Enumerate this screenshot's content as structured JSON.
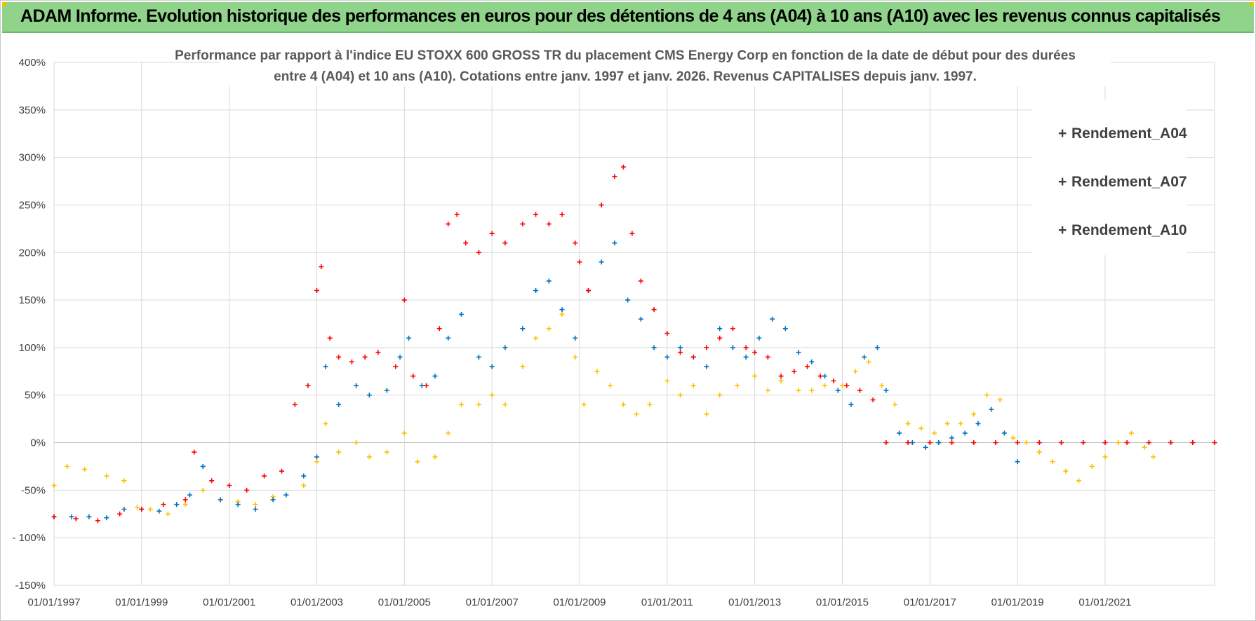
{
  "header": {
    "title": "ADAM Informe. Evolution historique des performances en euros pour des détentions de 4 ans (A04) à 10 ans (A10) avec les revenus connus capitalisés"
  },
  "colors": {
    "A04": "#ffc000",
    "A07": "#0070c0",
    "A10": "#ff0000",
    "banner": "#8fd48a",
    "grid": "#d9d9d9"
  },
  "chart_data": {
    "type": "scatter",
    "title_lines": [
      "Performance par rapport à l'indice EU STOXX 600 GROSS TR  du placement CMS Energy Corp en fonction de la date de début pour des durées",
      "entre 4 (A04) et 10 ans (A10).  Cotations entre janv. 1997 et janv. 2026. Revenus CAPITALISES depuis janv. 1997."
    ],
    "ylim": [
      -150,
      400
    ],
    "ytick_values": [
      -150,
      -100,
      -50,
      0,
      50,
      100,
      150,
      200,
      250,
      300,
      350,
      400
    ],
    "ytick_labels": [
      "-150%",
      "- 100%",
      "-50%",
      "0%",
      "50%",
      "100%",
      "150%",
      "200%",
      "250%",
      "300%",
      "350%",
      "400%"
    ],
    "xlim": [
      1997.0,
      2023.5
    ],
    "xtick_values": [
      1997,
      1999,
      2001,
      2003,
      2005,
      2007,
      2009,
      2011,
      2013,
      2015,
      2017,
      2019,
      2021
    ],
    "xtick_labels": [
      "01/01/1997",
      "01/01/1999",
      "01/01/2001",
      "01/01/2003",
      "01/01/2005",
      "01/01/2007",
      "01/01/2009",
      "01/01/2011",
      "01/01/2013",
      "01/01/2015",
      "01/01/2017",
      "01/01/2019",
      "01/01/2021"
    ],
    "legend": {
      "position": "top-right",
      "marker": "+"
    },
    "series": [
      {
        "name": "Rendement_A04",
        "x": [
          1997.0,
          1997.3,
          1997.7,
          1998.2,
          1998.6,
          1998.9,
          1999.2,
          1999.6,
          2000.0,
          2000.4,
          2000.8,
          2001.2,
          2001.6,
          2002.0,
          2002.3,
          2002.7,
          2003.0,
          2003.2,
          2003.5,
          2003.9,
          2004.2,
          2004.6,
          2005.0,
          2005.3,
          2005.7,
          2006.0,
          2006.3,
          2006.7,
          2007.0,
          2007.3,
          2007.7,
          2008.0,
          2008.3,
          2008.6,
          2008.9,
          2009.1,
          2009.4,
          2009.7,
          2010.0,
          2010.3,
          2010.6,
          2011.0,
          2011.3,
          2011.6,
          2011.9,
          2012.2,
          2012.6,
          2013.0,
          2013.3,
          2013.6,
          2014.0,
          2014.3,
          2014.6,
          2015.0,
          2015.3,
          2015.6,
          2015.9,
          2016.2,
          2016.5,
          2016.8,
          2017.1,
          2017.4,
          2017.7,
          2018.0,
          2018.3,
          2018.6,
          2018.9,
          2019.2,
          2019.5,
          2019.8,
          2020.1,
          2020.4,
          2020.7,
          2021.0,
          2021.3,
          2021.6,
          2021.9,
          2022.1
        ],
        "y": [
          -45,
          -25,
          -28,
          -35,
          -40,
          -68,
          -70,
          -75,
          -65,
          -50,
          -60,
          -62,
          -65,
          -57,
          -55,
          -45,
          -20,
          20,
          -10,
          0,
          -15,
          -10,
          10,
          -20,
          -15,
          10,
          40,
          40,
          50,
          40,
          80,
          110,
          120,
          135,
          90,
          40,
          75,
          60,
          40,
          30,
          40,
          65,
          50,
          60,
          30,
          50,
          60,
          70,
          55,
          65,
          55,
          55,
          60,
          60,
          75,
          85,
          60,
          40,
          20,
          15,
          10,
          20,
          20,
          30,
          50,
          45,
          5,
          0,
          -10,
          -20,
          -30,
          -40,
          -25,
          -15,
          0,
          10,
          -5,
          -15
        ]
      },
      {
        "name": "Rendement_A07",
        "x": [
          1997.0,
          1997.4,
          1997.8,
          1998.2,
          1998.6,
          1999.0,
          1999.4,
          1999.8,
          2000.1,
          2000.4,
          2000.8,
          2001.2,
          2001.6,
          2002.0,
          2002.3,
          2002.7,
          2003.0,
          2003.2,
          2003.5,
          2003.9,
          2004.2,
          2004.6,
          2004.9,
          2005.1,
          2005.4,
          2005.7,
          2006.0,
          2006.3,
          2006.7,
          2007.0,
          2007.3,
          2007.7,
          2008.0,
          2008.3,
          2008.6,
          2008.9,
          2009.2,
          2009.5,
          2009.8,
          2010.1,
          2010.4,
          2010.7,
          2011.0,
          2011.3,
          2011.6,
          2011.9,
          2012.2,
          2012.5,
          2012.8,
          2013.1,
          2013.4,
          2013.7,
          2014.0,
          2014.3,
          2014.6,
          2014.9,
          2015.2,
          2015.5,
          2015.8,
          2016.0,
          2016.3,
          2016.6,
          2016.9,
          2017.2,
          2017.5,
          2017.8,
          2018.1,
          2018.4,
          2018.7,
          2019.0
        ],
        "y": [
          -78,
          -78,
          -78,
          -79,
          -70,
          -70,
          -72,
          -65,
          -55,
          -25,
          -60,
          -65,
          -70,
          -60,
          -55,
          -35,
          -15,
          80,
          40,
          60,
          50,
          55,
          90,
          110,
          60,
          70,
          110,
          135,
          90,
          80,
          100,
          120,
          160,
          170,
          140,
          110,
          160,
          190,
          210,
          150,
          130,
          100,
          90,
          100,
          90,
          80,
          120,
          100,
          90,
          110,
          130,
          120,
          95,
          85,
          70,
          55,
          40,
          90,
          100,
          55,
          10,
          0,
          -5,
          0,
          5,
          10,
          20,
          35,
          10,
          -20
        ]
      },
      {
        "name": "Rendement_A10",
        "x": [
          1997.0,
          1997.5,
          1998.0,
          1998.5,
          1999.0,
          1999.5,
          2000.0,
          2000.2,
          2000.6,
          2001.0,
          2001.4,
          2001.8,
          2002.2,
          2002.5,
          2002.8,
          2003.0,
          2003.1,
          2003.3,
          2003.5,
          2003.8,
          2004.1,
          2004.4,
          2004.8,
          2005.0,
          2005.2,
          2005.5,
          2005.8,
          2006.0,
          2006.2,
          2006.4,
          2006.7,
          2007.0,
          2007.3,
          2007.7,
          2008.0,
          2008.3,
          2008.6,
          2008.9,
          2009.0,
          2009.2,
          2009.5,
          2009.8,
          2010.0,
          2010.2,
          2010.4,
          2010.7,
          2011.0,
          2011.3,
          2011.6,
          2011.9,
          2012.2,
          2012.5,
          2012.8,
          2013.0,
          2013.3,
          2013.6,
          2013.9,
          2014.2,
          2014.5,
          2014.8,
          2015.1,
          2015.4,
          2015.7,
          2016.0,
          2016.5,
          2017.0,
          2017.5,
          2018.0,
          2018.5,
          2019.0,
          2019.5,
          2020.0,
          2020.5,
          2021.0,
          2021.5,
          2022.0,
          2022.5,
          2023.0,
          2023.5
        ],
        "y": [
          -78,
          -80,
          -82,
          -75,
          -70,
          -65,
          -60,
          -10,
          -40,
          -45,
          -50,
          -35,
          -30,
          40,
          60,
          160,
          185,
          110,
          90,
          85,
          90,
          95,
          80,
          150,
          70,
          60,
          120,
          230,
          240,
          210,
          200,
          220,
          210,
          230,
          240,
          230,
          240,
          210,
          190,
          160,
          250,
          280,
          290,
          220,
          170,
          140,
          115,
          95,
          90,
          100,
          110,
          120,
          100,
          95,
          90,
          70,
          75,
          80,
          70,
          65,
          60,
          55,
          45,
          0,
          0,
          0,
          0,
          0,
          0,
          0,
          0,
          0,
          0,
          0,
          0,
          0,
          0,
          0,
          0
        ]
      }
    ]
  }
}
